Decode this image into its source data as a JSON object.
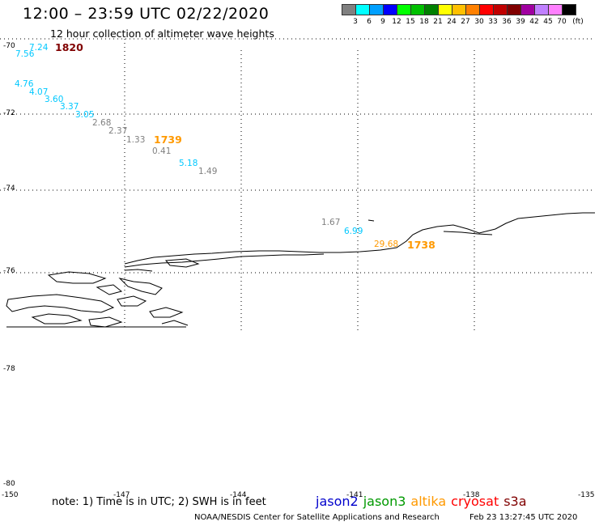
{
  "header": {
    "title": "12:00 – 23:59 UTC 02/22/2020",
    "subtitle": "12 hour collection of altimeter wave heights"
  },
  "colorbar": {
    "colors": [
      "#808080",
      "#00ffff",
      "#00a0ff",
      "#0000ff",
      "#00ff00",
      "#00c000",
      "#008000",
      "#ffff00",
      "#ffc000",
      "#ff8000",
      "#ff0000",
      "#c00000",
      "#800000",
      "#a000a0",
      "#c080ff",
      "#ff80ff",
      "#000000"
    ],
    "labels": [
      "3",
      "6",
      "9",
      "12",
      "15",
      "18",
      "21",
      "24",
      "27",
      "30",
      "33",
      "36",
      "39",
      "42",
      "45",
      "70",
      "(ft)"
    ]
  },
  "axes": {
    "lat_labels": [
      "-70",
      "-72",
      "-74",
      "-76",
      "-78",
      "-80"
    ],
    "lon_labels": [
      "-150",
      "-147",
      "-144",
      "-141",
      "-138",
      "-135"
    ]
  },
  "observations": [
    {
      "text": "7.24",
      "color": "#00c8ff"
    },
    {
      "text": "7.56",
      "color": "#00c8ff"
    },
    {
      "text": "4.76",
      "color": "#00c8ff"
    },
    {
      "text": "4.07",
      "color": "#00c8ff"
    },
    {
      "text": "3.60",
      "color": "#00c8ff"
    },
    {
      "text": "3.37",
      "color": "#00c8ff"
    },
    {
      "text": "3.05",
      "color": "#00c8ff"
    },
    {
      "text": "2.68",
      "color": "#808080"
    },
    {
      "text": "2.37",
      "color": "#808080"
    },
    {
      "text": "1.33",
      "color": "#808080"
    },
    {
      "text": "0.41",
      "color": "#808080"
    },
    {
      "text": "5.18",
      "color": "#00c8ff"
    },
    {
      "text": "1.49",
      "color": "#808080"
    },
    {
      "text": "1.67",
      "color": "#808080"
    },
    {
      "text": "6.99",
      "color": "#00c8ff"
    },
    {
      "text": "29.68",
      "color": "#ff9900"
    }
  ],
  "pass_times": [
    {
      "text": "1820",
      "color": "#800000"
    },
    {
      "text": "1739",
      "color": "#ff9900"
    },
    {
      "text": "1738",
      "color": "#ff9900"
    }
  ],
  "footer": {
    "note": "note:  1) Time is in UTC;  2) SWH is in feet",
    "satellites": [
      {
        "name": "jason2",
        "color": "#0000cc"
      },
      {
        "name": "jason3",
        "color": "#009900"
      },
      {
        "name": "altika",
        "color": "#ff9900"
      },
      {
        "name": "cryosat",
        "color": "#ff0000"
      },
      {
        "name": "s3a",
        "color": "#800000"
      }
    ],
    "credit": "NOAA/NESDIS Center for Satellite Applications and Research",
    "timestamp": "Feb 23 13:27:45 UTC 2020"
  }
}
